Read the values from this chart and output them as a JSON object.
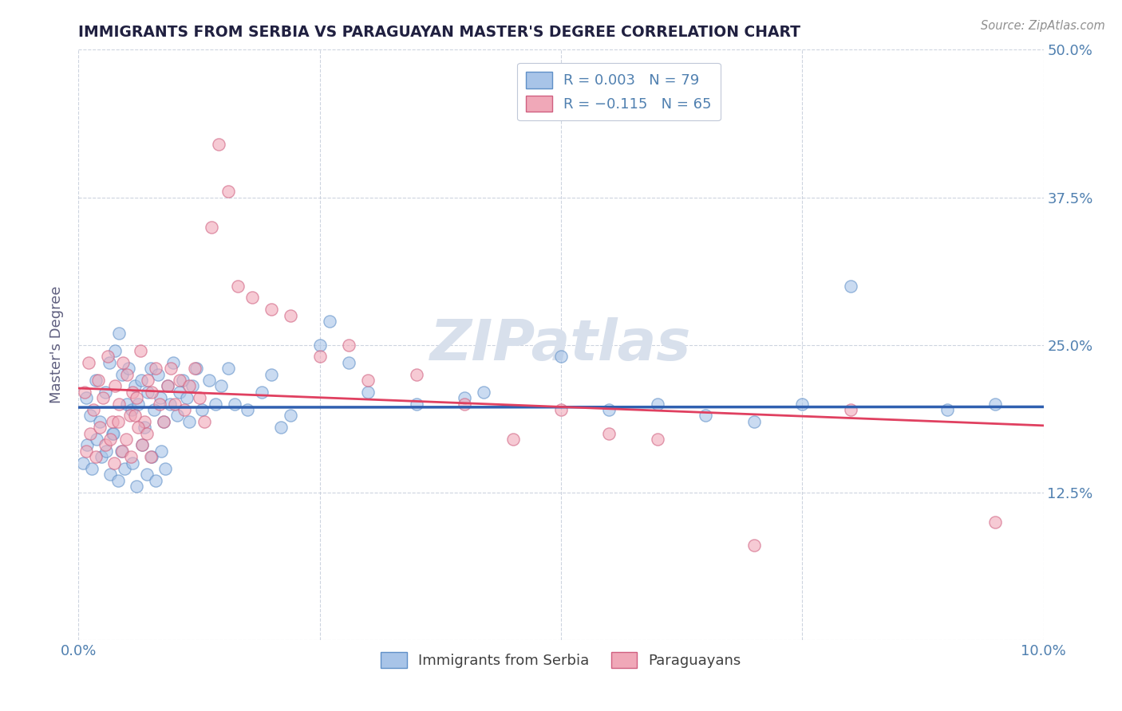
{
  "title": "IMMIGRANTS FROM SERBIA VS PARAGUAYAN MASTER'S DEGREE CORRELATION CHART",
  "source_text": "Source: ZipAtlas.com",
  "ylabel": "Master's Degree",
  "xlim": [
    0.0,
    10.0
  ],
  "ylim": [
    0.0,
    50.0
  ],
  "xtick_vals": [
    0.0,
    2.5,
    5.0,
    7.5,
    10.0
  ],
  "xtick_labels": [
    "0.0%",
    "",
    "",
    "",
    "10.0%"
  ],
  "ytick_vals": [
    0.0,
    12.5,
    25.0,
    37.5,
    50.0
  ],
  "ytick_labels": [
    "",
    "12.5%",
    "25.0%",
    "37.5%",
    "50.0%"
  ],
  "serbia_color": "#a8c4e8",
  "serbia_edge": "#6090c8",
  "paraguay_color": "#f0a8b8",
  "paraguay_edge": "#d06080",
  "serbia_R": 0.003,
  "paraguay_R": -0.115,
  "trendline_serbia_color": "#3060b0",
  "trendline_paraguay_color": "#e04060",
  "grid_color": "#c8d0dc",
  "background_color": "#ffffff",
  "title_color": "#202040",
  "axis_label_color": "#606080",
  "tick_color": "#5080b0",
  "watermark_color": "#d8e0ec",
  "serbia_scatter_x": [
    0.08,
    0.12,
    0.18,
    0.22,
    0.28,
    0.32,
    0.35,
    0.38,
    0.42,
    0.45,
    0.5,
    0.52,
    0.55,
    0.58,
    0.62,
    0.65,
    0.68,
    0.72,
    0.75,
    0.78,
    0.82,
    0.85,
    0.88,
    0.92,
    0.95,
    0.98,
    1.02,
    1.05,
    1.08,
    1.12,
    1.15,
    1.18,
    1.22,
    1.28,
    1.35,
    1.42,
    1.48,
    1.55,
    1.62,
    1.75,
    1.9,
    2.0,
    2.1,
    2.2,
    2.5,
    2.6,
    2.8,
    3.0,
    3.5,
    4.0,
    4.2,
    5.0,
    5.5,
    6.0,
    6.5,
    7.0,
    7.5,
    8.0,
    9.0,
    9.5,
    0.05,
    0.09,
    0.14,
    0.19,
    0.24,
    0.29,
    0.33,
    0.36,
    0.41,
    0.44,
    0.48,
    0.56,
    0.6,
    0.66,
    0.71,
    0.76,
    0.8,
    0.86,
    0.9
  ],
  "serbia_scatter_y": [
    20.5,
    19.0,
    22.0,
    18.5,
    21.0,
    23.5,
    17.5,
    24.5,
    26.0,
    22.5,
    20.0,
    23.0,
    19.5,
    21.5,
    20.0,
    22.0,
    18.0,
    21.0,
    23.0,
    19.5,
    22.5,
    20.5,
    18.5,
    21.5,
    20.0,
    23.5,
    19.0,
    21.0,
    22.0,
    20.5,
    18.5,
    21.5,
    23.0,
    19.5,
    22.0,
    20.0,
    21.5,
    23.0,
    20.0,
    19.5,
    21.0,
    22.5,
    18.0,
    19.0,
    25.0,
    27.0,
    23.5,
    21.0,
    20.0,
    20.5,
    21.0,
    24.0,
    19.5,
    20.0,
    19.0,
    18.5,
    20.0,
    30.0,
    19.5,
    20.0,
    15.0,
    16.5,
    14.5,
    17.0,
    15.5,
    16.0,
    14.0,
    17.5,
    13.5,
    16.0,
    14.5,
    15.0,
    13.0,
    16.5,
    14.0,
    15.5,
    13.5,
    16.0,
    14.5
  ],
  "paraguay_scatter_x": [
    0.06,
    0.1,
    0.15,
    0.2,
    0.25,
    0.3,
    0.35,
    0.38,
    0.42,
    0.46,
    0.5,
    0.53,
    0.56,
    0.6,
    0.64,
    0.68,
    0.72,
    0.76,
    0.8,
    0.84,
    0.88,
    0.92,
    0.96,
    1.0,
    1.05,
    1.1,
    1.15,
    1.2,
    1.25,
    1.3,
    1.38,
    1.45,
    1.55,
    1.65,
    1.8,
    2.0,
    2.2,
    2.5,
    2.8,
    3.0,
    3.5,
    4.0,
    4.5,
    5.0,
    5.5,
    6.0,
    7.0,
    8.0,
    9.5,
    0.08,
    0.12,
    0.18,
    0.22,
    0.28,
    0.33,
    0.37,
    0.41,
    0.45,
    0.49,
    0.54,
    0.58,
    0.62,
    0.66,
    0.71,
    0.75
  ],
  "paraguay_scatter_y": [
    21.0,
    23.5,
    19.5,
    22.0,
    20.5,
    24.0,
    18.5,
    21.5,
    20.0,
    23.5,
    22.5,
    19.0,
    21.0,
    20.5,
    24.5,
    18.5,
    22.0,
    21.0,
    23.0,
    20.0,
    18.5,
    21.5,
    23.0,
    20.0,
    22.0,
    19.5,
    21.5,
    23.0,
    20.5,
    18.5,
    35.0,
    42.0,
    38.0,
    30.0,
    29.0,
    28.0,
    27.5,
    24.0,
    25.0,
    22.0,
    22.5,
    20.0,
    17.0,
    19.5,
    17.5,
    17.0,
    8.0,
    19.5,
    10.0,
    16.0,
    17.5,
    15.5,
    18.0,
    16.5,
    17.0,
    15.0,
    18.5,
    16.0,
    17.0,
    15.5,
    19.0,
    18.0,
    16.5,
    17.5,
    15.5
  ]
}
